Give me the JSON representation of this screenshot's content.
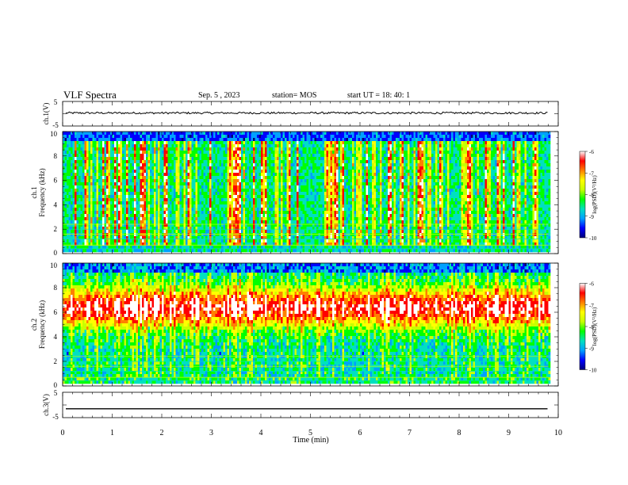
{
  "header": {
    "title": "VLF Spectra",
    "date": "Sep. 5 , 2023",
    "station": "station= MOS",
    "start_ut": "start UT =   18: 40: 1"
  },
  "chart_data": [
    {
      "type": "line",
      "ylabel": "ch.1(V)",
      "ylim": [
        -5,
        5
      ],
      "yticks": [
        "5",
        "-5"
      ],
      "xlim": [
        0,
        10
      ],
      "series": [
        {
          "values": "approximately constant near 0 V with small noise"
        }
      ]
    },
    {
      "type": "heatmap",
      "ylabel_channel": "ch.1",
      "ylabel": "Frequency (kHz)",
      "ylim": [
        0,
        10
      ],
      "yticks": [
        "0",
        "2",
        "4",
        "6",
        "8",
        "10"
      ],
      "xlim": [
        0,
        10
      ],
      "data_end_min": 9.8,
      "colorbar": {
        "label": "log(PSD)(V²/Hz)",
        "range": [
          -10,
          -6
        ],
        "ticks": [
          "-6",
          "-7",
          "-8",
          "-9",
          "-10"
        ]
      },
      "description_values": {
        "dominant_band_khz": [
          0.3,
          9.5
        ],
        "typical_log_psd": [
          -9,
          -7
        ]
      }
    },
    {
      "type": "heatmap",
      "ylabel_channel": "ch.2",
      "ylabel": "Frequency (kHz)",
      "ylim": [
        0,
        10
      ],
      "yticks": [
        "0",
        "2",
        "4",
        "6",
        "8",
        "10"
      ],
      "xlim": [
        0,
        10
      ],
      "data_end_min": 9.8,
      "colorbar": {
        "label": "log(PSD)(V²/Hz)",
        "range": [
          -10,
          -6
        ],
        "ticks": [
          "-6",
          "-7",
          "-8",
          "-9",
          "-10"
        ]
      },
      "description_values": {
        "peak_band_khz": [
          5,
          8
        ],
        "typical_log_psd": [
          -8,
          -6.5
        ]
      }
    },
    {
      "type": "line",
      "ylabel": "ch.3(V)",
      "ylim": [
        -5,
        5
      ],
      "yticks": [
        "5",
        "-5"
      ],
      "xlim": [
        0,
        10
      ],
      "xlabel": "Time (min)",
      "xticks": [
        "0",
        "1",
        "2",
        "3",
        "4",
        "5",
        "6",
        "7",
        "8",
        "9",
        "10"
      ],
      "series": [
        {
          "values": "constant at about -1.5 V"
        }
      ]
    }
  ],
  "colors": {
    "colormap": [
      "#00007a",
      "#0000ff",
      "#00a0ff",
      "#00e0c0",
      "#00ff00",
      "#c8ff00",
      "#ffff00",
      "#ff8000",
      "#ff0000",
      "#ffffff"
    ]
  }
}
